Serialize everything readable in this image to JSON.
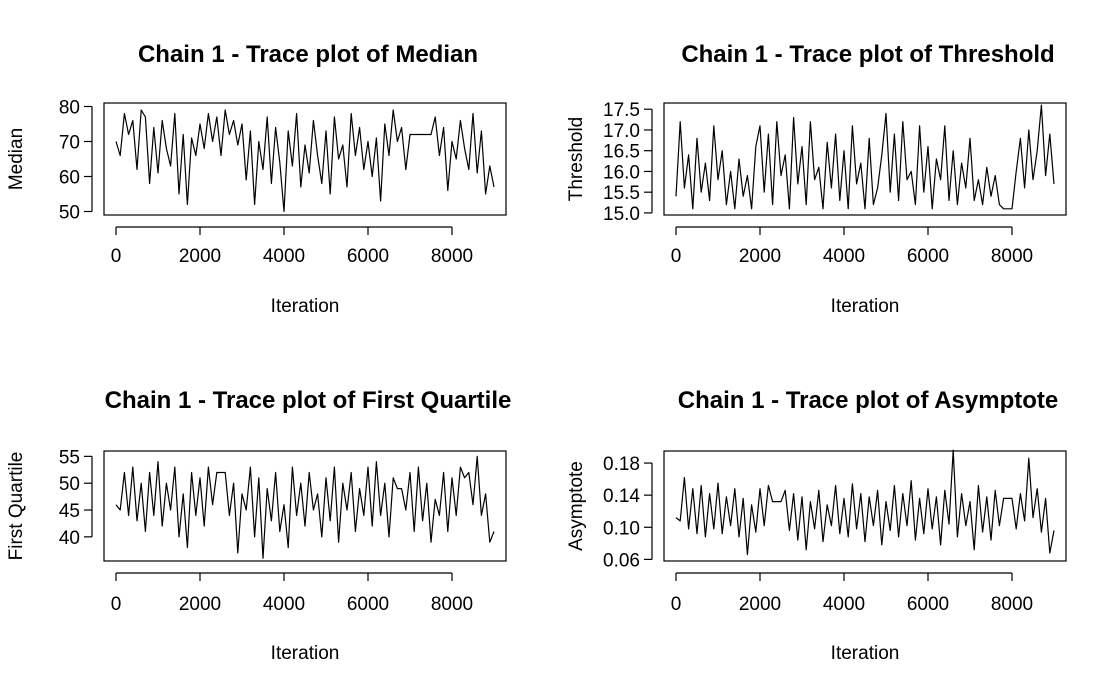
{
  "chart_data": [
    {
      "type": "line",
      "title": "Chain 1 - Trace plot of Median",
      "xlabel": "Iteration",
      "ylabel": "Median",
      "xlim": [
        0,
        9000
      ],
      "ylim": [
        49,
        81
      ],
      "xticks": [
        "0",
        "2000",
        "4000",
        "6000",
        "8000"
      ],
      "yticks": [
        "50",
        "60",
        "70",
        "80"
      ],
      "grid": false,
      "series": [
        {
          "x": [
            0,
            100,
            200,
            300,
            400,
            500,
            600,
            700,
            800,
            900,
            1000,
            1100,
            1200,
            1300,
            1400,
            1500,
            1600,
            1700,
            1800,
            1900,
            2000,
            2100,
            2200,
            2300,
            2400,
            2500,
            2600,
            2700,
            2800,
            2900,
            3000,
            3100,
            3200,
            3300,
            3400,
            3500,
            3600,
            3700,
            3800,
            3900,
            4000,
            4100,
            4200,
            4300,
            4400,
            4500,
            4600,
            4700,
            4800,
            4900,
            5000,
            5100,
            5200,
            5300,
            5400,
            5500,
            5600,
            5700,
            5800,
            5900,
            6000,
            6100,
            6200,
            6300,
            6400,
            6500,
            6600,
            6700,
            6800,
            6900,
            7000,
            7100,
            7200,
            7300,
            7400,
            7500,
            7600,
            7700,
            7800,
            7900,
            8000,
            8100,
            8200,
            8300,
            8400,
            8500,
            8600,
            8700,
            8800,
            8900,
            9000
          ],
          "y": [
            70,
            66,
            78,
            72,
            76,
            62,
            79,
            77,
            58,
            74,
            61,
            76,
            68,
            63,
            78,
            55,
            72,
            52,
            71,
            66,
            75,
            68,
            78,
            70,
            77,
            66,
            79,
            72,
            76,
            69,
            75,
            59,
            73,
            52,
            70,
            62,
            77,
            58,
            74,
            64,
            50,
            73,
            63,
            78,
            57,
            69,
            61,
            76,
            66,
            58,
            73,
            55,
            77,
            65,
            69,
            57,
            78,
            66,
            74,
            62,
            70,
            60,
            71,
            53,
            75,
            66,
            79,
            70,
            74,
            62,
            72,
            72,
            72,
            72,
            72,
            72,
            77,
            66,
            74,
            56,
            70,
            65,
            76,
            68,
            62,
            78,
            61,
            73,
            55,
            63,
            57
          ]
        }
      ]
    },
    {
      "type": "line",
      "title": "Chain 1 - Trace plot of Threshold",
      "xlabel": "Iteration",
      "ylabel": "Threshold",
      "xlim": [
        0,
        9000
      ],
      "ylim": [
        14.95,
        17.65
      ],
      "xticks": [
        "0",
        "2000",
        "4000",
        "6000",
        "8000"
      ],
      "yticks": [
        "15.0",
        "15.5",
        "16.0",
        "16.5",
        "17.0",
        "17.5"
      ],
      "grid": false,
      "series": [
        {
          "x": [
            0,
            100,
            200,
            300,
            400,
            500,
            600,
            700,
            800,
            900,
            1000,
            1100,
            1200,
            1300,
            1400,
            1500,
            1600,
            1700,
            1800,
            1900,
            2000,
            2100,
            2200,
            2300,
            2400,
            2500,
            2600,
            2700,
            2800,
            2900,
            3000,
            3100,
            3200,
            3300,
            3400,
            3500,
            3600,
            3700,
            3800,
            3900,
            4000,
            4100,
            4200,
            4300,
            4400,
            4500,
            4600,
            4700,
            4800,
            4900,
            5000,
            5100,
            5200,
            5300,
            5400,
            5500,
            5600,
            5700,
            5800,
            5900,
            6000,
            6100,
            6200,
            6300,
            6400,
            6500,
            6600,
            6700,
            6800,
            6900,
            7000,
            7100,
            7200,
            7300,
            7400,
            7500,
            7600,
            7700,
            7800,
            7900,
            8000,
            8100,
            8200,
            8300,
            8400,
            8500,
            8600,
            8700,
            8800,
            8900,
            9000
          ],
          "y": [
            15.4,
            17.2,
            15.6,
            16.4,
            15.1,
            16.8,
            15.5,
            16.2,
            15.3,
            17.1,
            15.8,
            16.5,
            15.2,
            16.0,
            15.1,
            16.3,
            15.4,
            15.9,
            15.1,
            16.6,
            17.1,
            15.5,
            16.9,
            15.2,
            17.2,
            15.9,
            16.4,
            15.1,
            17.3,
            15.7,
            16.6,
            15.2,
            17.2,
            15.8,
            16.1,
            15.1,
            16.7,
            15.6,
            16.9,
            15.3,
            16.5,
            15.1,
            17.1,
            15.7,
            16.2,
            15.1,
            16.8,
            15.2,
            15.6,
            16.4,
            17.4,
            15.5,
            16.9,
            15.3,
            17.2,
            15.8,
            16.0,
            15.2,
            17.1,
            15.5,
            16.6,
            15.1,
            16.3,
            15.8,
            17.1,
            15.3,
            16.5,
            15.2,
            16.2,
            15.6,
            16.8,
            15.3,
            15.8,
            15.2,
            16.1,
            15.4,
            15.9,
            15.2,
            15.1,
            15.1,
            15.1,
            16.0,
            16.8,
            15.6,
            17.0,
            15.8,
            16.5,
            17.6,
            15.9,
            16.9,
            15.7
          ]
        }
      ]
    },
    {
      "type": "line",
      "title": "Chain 1 - Trace plot of First Quartile",
      "xlabel": "Iteration",
      "ylabel": "First Quartile",
      "xlim": [
        0,
        9000
      ],
      "ylim": [
        35.5,
        56
      ],
      "xticks": [
        "0",
        "2000",
        "4000",
        "6000",
        "8000"
      ],
      "yticks": [
        "40",
        "45",
        "50",
        "55"
      ],
      "grid": false,
      "series": [
        {
          "x": [
            0,
            100,
            200,
            300,
            400,
            500,
            600,
            700,
            800,
            900,
            1000,
            1100,
            1200,
            1300,
            1400,
            1500,
            1600,
            1700,
            1800,
            1900,
            2000,
            2100,
            2200,
            2300,
            2400,
            2500,
            2600,
            2700,
            2800,
            2900,
            3000,
            3100,
            3200,
            3300,
            3400,
            3500,
            3600,
            3700,
            3800,
            3900,
            4000,
            4100,
            4200,
            4300,
            4400,
            4500,
            4600,
            4700,
            4800,
            4900,
            5000,
            5100,
            5200,
            5300,
            5400,
            5500,
            5600,
            5700,
            5800,
            5900,
            6000,
            6100,
            6200,
            6300,
            6400,
            6500,
            6600,
            6700,
            6800,
            6900,
            7000,
            7100,
            7200,
            7300,
            7400,
            7500,
            7600,
            7700,
            7800,
            7900,
            8000,
            8100,
            8200,
            8300,
            8400,
            8500,
            8600,
            8700,
            8800,
            8900,
            9000
          ],
          "y": [
            46,
            45,
            52,
            44,
            53,
            43,
            50,
            41,
            52,
            44,
            54,
            42,
            50,
            45,
            53,
            40,
            48,
            38,
            52,
            44,
            51,
            42,
            53,
            46,
            52,
            52,
            52,
            44,
            50,
            37,
            48,
            45,
            53,
            40,
            51,
            36,
            49,
            43,
            52,
            41,
            46,
            38,
            53,
            44,
            50,
            42,
            52,
            45,
            48,
            40,
            51,
            43,
            53,
            39,
            50,
            45,
            52,
            41,
            49,
            44,
            53,
            42,
            54,
            44,
            50,
            40,
            51,
            49,
            49,
            45,
            52,
            41,
            53,
            43,
            50,
            39,
            47,
            44,
            52,
            41,
            51,
            44,
            53,
            51,
            52,
            46,
            55,
            44,
            48,
            39,
            41
          ]
        }
      ]
    },
    {
      "type": "line",
      "title": "Chain 1 - Trace plot of Asymptote",
      "xlabel": "Iteration",
      "ylabel": "Asymptote",
      "xlim": [
        0,
        9000
      ],
      "ylim": [
        0.058,
        0.195
      ],
      "xticks": [
        "0",
        "2000",
        "4000",
        "6000",
        "8000"
      ],
      "yticks": [
        "0.06",
        "0.10",
        "0.14",
        "0.18"
      ],
      "grid": false,
      "series": [
        {
          "x": [
            0,
            100,
            200,
            300,
            400,
            500,
            600,
            700,
            800,
            900,
            1000,
            1100,
            1200,
            1300,
            1400,
            1500,
            1600,
            1700,
            1800,
            1900,
            2000,
            2100,
            2200,
            2300,
            2400,
            2500,
            2600,
            2700,
            2800,
            2900,
            3000,
            3100,
            3200,
            3300,
            3400,
            3500,
            3600,
            3700,
            3800,
            3900,
            4000,
            4100,
            4200,
            4300,
            4400,
            4500,
            4600,
            4700,
            4800,
            4900,
            5000,
            5100,
            5200,
            5300,
            5400,
            5500,
            5600,
            5700,
            5800,
            5900,
            6000,
            6100,
            6200,
            6300,
            6400,
            6500,
            6600,
            6700,
            6800,
            6900,
            7000,
            7100,
            7200,
            7300,
            7400,
            7500,
            7600,
            7700,
            7800,
            7900,
            8000,
            8100,
            8200,
            8300,
            8400,
            8500,
            8600,
            8700,
            8800,
            8900,
            9000
          ],
          "y": [
            0.112,
            0.108,
            0.162,
            0.098,
            0.148,
            0.092,
            0.152,
            0.088,
            0.142,
            0.098,
            0.155,
            0.092,
            0.138,
            0.102,
            0.148,
            0.088,
            0.136,
            0.066,
            0.128,
            0.094,
            0.148,
            0.102,
            0.152,
            0.132,
            0.132,
            0.132,
            0.146,
            0.096,
            0.142,
            0.084,
            0.138,
            0.072,
            0.132,
            0.098,
            0.146,
            0.082,
            0.128,
            0.102,
            0.152,
            0.092,
            0.136,
            0.088,
            0.154,
            0.098,
            0.142,
            0.082,
            0.138,
            0.102,
            0.146,
            0.078,
            0.132,
            0.096,
            0.152,
            0.088,
            0.142,
            0.102,
            0.158,
            0.084,
            0.136,
            0.092,
            0.148,
            0.098,
            0.138,
            0.078,
            0.146,
            0.104,
            0.196,
            0.088,
            0.142,
            0.102,
            0.132,
            0.072,
            0.152,
            0.094,
            0.138,
            0.084,
            0.146,
            0.102,
            0.136,
            0.136,
            0.136,
            0.098,
            0.142,
            0.108,
            0.186,
            0.112,
            0.148,
            0.094,
            0.136,
            0.068,
            0.096
          ]
        }
      ]
    }
  ]
}
